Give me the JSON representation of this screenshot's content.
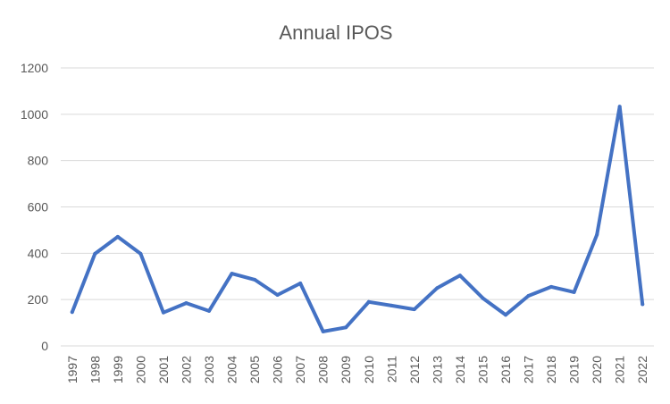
{
  "chart_data": {
    "type": "line",
    "title": "Annual IPOS",
    "xlabel": "",
    "ylabel": "",
    "x": [
      "1997",
      "1998",
      "1999",
      "2000",
      "2001",
      "2002",
      "2003",
      "2004",
      "2005",
      "2006",
      "2007",
      "2008",
      "2009",
      "2010",
      "2011",
      "2012",
      "2013",
      "2014",
      "2015",
      "2016",
      "2017",
      "2018",
      "2019",
      "2020",
      "2021",
      "2022"
    ],
    "series": [
      {
        "values": [
          146,
          398,
          471,
          398,
          144,
          185,
          151,
          312,
          286,
          220,
          270,
          62,
          80,
          190,
          174,
          158,
          250,
          304,
          206,
          134,
          216,
          255,
          232,
          480,
          1033,
          180
        ]
      }
    ],
    "ylim": [
      0,
      1200
    ],
    "yticks": [
      0,
      200,
      400,
      600,
      800,
      1000,
      1200
    ],
    "grid": true,
    "legend": "none",
    "line_color": "#4472c4"
  }
}
